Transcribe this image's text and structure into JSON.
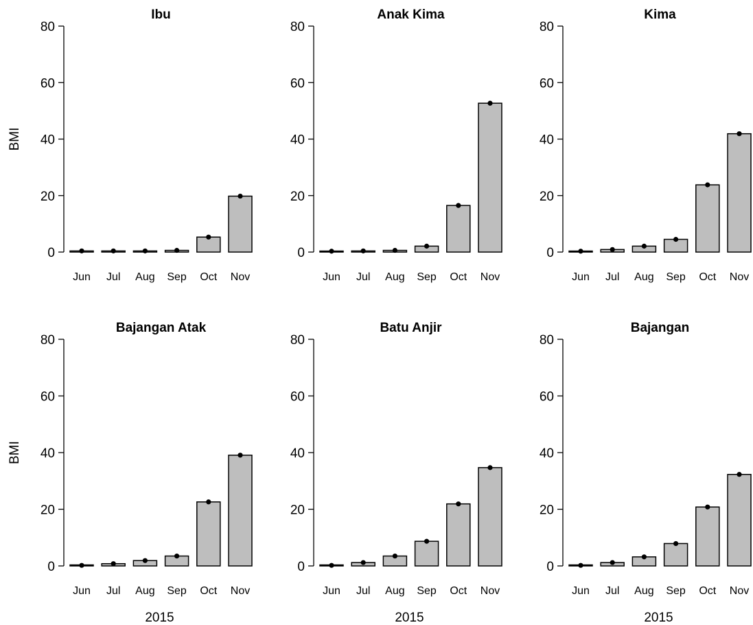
{
  "chart_data": [
    {
      "type": "bar",
      "title": "Ibu",
      "categories": [
        "Jun",
        "Jul",
        "Aug",
        "Sep",
        "Oct",
        "Nov"
      ],
      "values": [
        0.4,
        0.4,
        0.4,
        0.6,
        5.3,
        19.8
      ],
      "ylabel": "BMI",
      "xlabel": "",
      "ylim": [
        0,
        80
      ],
      "yticks": [
        "0",
        "20",
        "40",
        "60",
        "80"
      ]
    },
    {
      "type": "bar",
      "title": "Anak Kima",
      "categories": [
        "Jun",
        "Jul",
        "Aug",
        "Sep",
        "Oct",
        "Nov"
      ],
      "values": [
        0.3,
        0.4,
        0.6,
        2.1,
        16.5,
        52.7
      ],
      "ylabel": "",
      "xlabel": "",
      "ylim": [
        0,
        80
      ],
      "yticks": [
        "0",
        "20",
        "40",
        "60",
        "80"
      ]
    },
    {
      "type": "bar",
      "title": "Kima",
      "categories": [
        "Jun",
        "Jul",
        "Aug",
        "Sep",
        "Oct",
        "Nov"
      ],
      "values": [
        0.3,
        0.9,
        2.1,
        4.5,
        23.8,
        41.9
      ],
      "ylabel": "",
      "xlabel": "",
      "ylim": [
        0,
        80
      ],
      "yticks": [
        "0",
        "20",
        "40",
        "60",
        "80"
      ]
    },
    {
      "type": "bar",
      "title": "Bajangan Atak",
      "categories": [
        "Jun",
        "Jul",
        "Aug",
        "Sep",
        "Oct",
        "Nov"
      ],
      "values": [
        0.2,
        0.8,
        1.9,
        3.5,
        22.6,
        39.1
      ],
      "ylabel": "BMI",
      "xlabel": "2015",
      "ylim": [
        0,
        80
      ],
      "yticks": [
        "0",
        "20",
        "40",
        "60",
        "80"
      ]
    },
    {
      "type": "bar",
      "title": "Batu Anjir",
      "categories": [
        "Jun",
        "Jul",
        "Aug",
        "Sep",
        "Oct",
        "Nov"
      ],
      "values": [
        0.2,
        1.2,
        3.5,
        8.7,
        21.9,
        34.7
      ],
      "ylabel": "",
      "xlabel": "2015",
      "ylim": [
        0,
        80
      ],
      "yticks": [
        "0",
        "20",
        "40",
        "60",
        "80"
      ]
    },
    {
      "type": "bar",
      "title": "Bajangan",
      "categories": [
        "Jun",
        "Jul",
        "Aug",
        "Sep",
        "Oct",
        "Nov"
      ],
      "values": [
        0.2,
        1.2,
        3.2,
        7.9,
        20.8,
        32.3
      ],
      "ylabel": "",
      "xlabel": "2015",
      "ylim": [
        0,
        80
      ],
      "yticks": [
        "0",
        "20",
        "40",
        "60",
        "80"
      ]
    }
  ],
  "colors": {
    "bar_fill": "#bebebe",
    "bar_stroke": "#000000",
    "point": "#000000"
  }
}
